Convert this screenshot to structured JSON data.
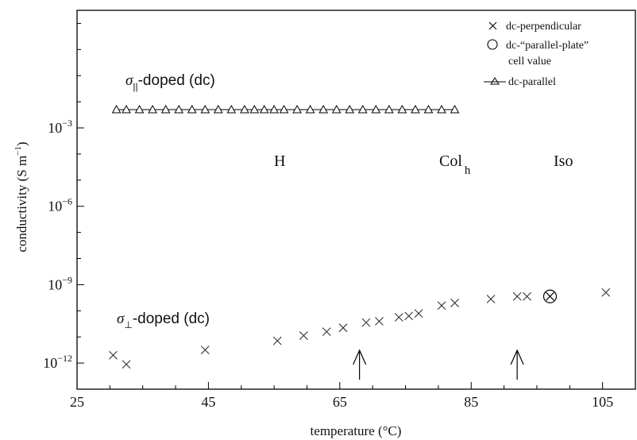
{
  "chart_data": {
    "type": "scatter",
    "xlabel": "temperature (°C)",
    "ylabel": "conductivity (S m",
    "ylabel_sup": "−1",
    "ylabel_close": ")",
    "y_scale": "log",
    "xlim": [
      25,
      110
    ],
    "ylim_log10": [
      -13,
      1.5
    ],
    "x_ticks": [
      25,
      45,
      65,
      85,
      105
    ],
    "y_ticks": [
      {
        "exp": -3,
        "base": "10",
        "sup": "−3"
      },
      {
        "exp": -6,
        "base": "10",
        "sup": "−6"
      },
      {
        "exp": -9,
        "base": "10",
        "sup": "−9"
      },
      {
        "exp": -12,
        "base": "10",
        "sup": "−12"
      }
    ],
    "grid": false,
    "legend_position": "top-right",
    "legend": [
      {
        "marker": "cross",
        "label": "dc-perpendicular"
      },
      {
        "marker": "circle",
        "label": "dc-“parallel-plate”",
        "label2": "cell value"
      },
      {
        "marker": "triangle-line",
        "label": "dc-parallel"
      }
    ],
    "series": [
      {
        "name": "dc-perpendicular",
        "marker": "cross",
        "x": [
          30.5,
          32.5,
          44.5,
          55.5,
          59.5,
          63,
          65.5,
          69,
          71,
          74,
          75.5,
          77,
          80.5,
          82.5,
          88,
          92,
          93.5,
          105.5
        ],
        "log10_y": [
          -11.7,
          -12.05,
          -11.5,
          -11.15,
          -10.95,
          -10.8,
          -10.65,
          -10.45,
          -10.4,
          -10.25,
          -10.2,
          -10.1,
          -9.8,
          -9.7,
          -9.55,
          -9.45,
          -9.45,
          -9.3
        ]
      },
      {
        "name": "dc-“parallel-plate” cell value",
        "marker": "circle-x",
        "x": [
          97
        ],
        "log10_y": [
          -9.45
        ]
      },
      {
        "name": "dc-parallel",
        "marker": "triangle-line",
        "x": [
          31,
          32.5,
          34.5,
          36.5,
          38.5,
          40.5,
          42.5,
          44.5,
          46.5,
          48.5,
          50.5,
          52,
          53.5,
          55,
          56.5,
          58.5,
          60.5,
          62.5,
          64.5,
          66.5,
          68.5,
          70.5,
          72.5,
          74.5,
          76.5,
          78.5,
          80.5,
          82.5
        ],
        "log10_y": [
          -2.3,
          -2.3,
          -2.3,
          -2.3,
          -2.3,
          -2.3,
          -2.3,
          -2.3,
          -2.3,
          -2.3,
          -2.3,
          -2.3,
          -2.3,
          -2.3,
          -2.3,
          -2.3,
          -2.3,
          -2.3,
          -2.3,
          -2.3,
          -2.3,
          -2.3,
          -2.3,
          -2.3,
          -2.3,
          -2.3,
          -2.3,
          -2.3
        ]
      }
    ],
    "annotations": {
      "parallel_label_pre": "σ",
      "parallel_label_sub": "||",
      "parallel_label_post": "-doped (dc)",
      "perp_label_pre": "σ",
      "perp_label_sub": "⊥",
      "perp_label_post": "-doped (dc)",
      "phase_h": "H",
      "phase_col": "Col",
      "phase_col_sub": "h",
      "phase_iso": "Iso"
    },
    "transition_arrows_x": [
      68,
      92
    ]
  }
}
